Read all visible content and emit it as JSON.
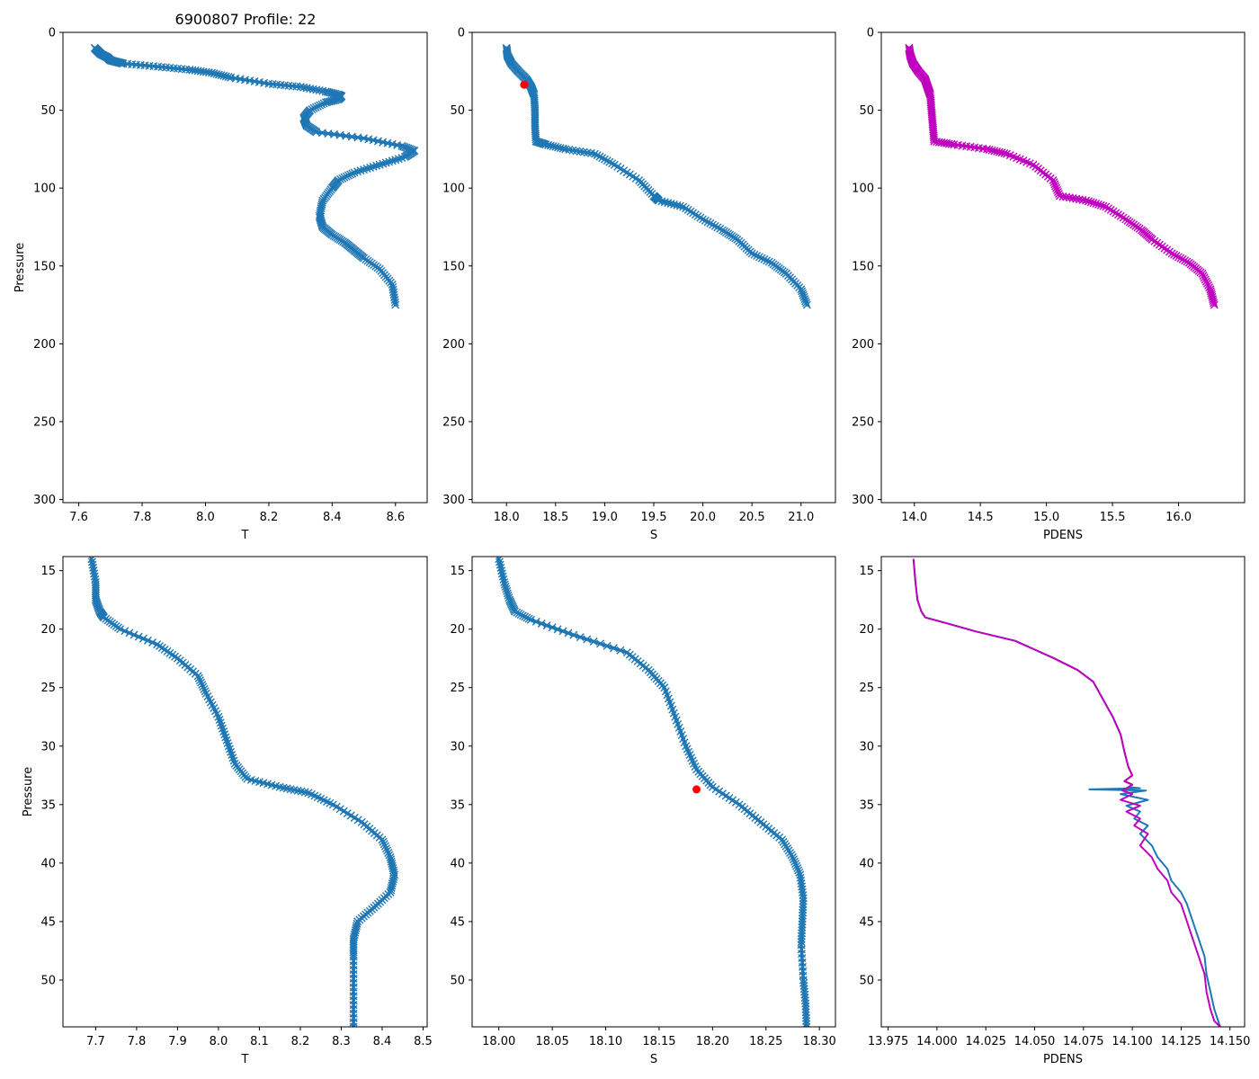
{
  "figure_title": "6900807 Profile: 22",
  "colors": {
    "series": "#1f77b4",
    "density": "#bf00bf",
    "marker": "#ff0000",
    "axis": "#000000"
  },
  "chart_data": [
    {
      "id": "t-full",
      "type": "scatter",
      "marker": "x",
      "title": "6900807 Profile: 22",
      "xlabel": "T",
      "ylabel": "Pressure",
      "xlim": [
        7.55,
        8.7
      ],
      "ylim": [
        302,
        0
      ],
      "y_inverted": true,
      "xticks": [
        7.6,
        7.8,
        8.0,
        8.2,
        8.4,
        8.6
      ],
      "xtick_labels": [
        "7.6",
        "7.8",
        "8.0",
        "8.2",
        "8.4",
        "8.6"
      ],
      "yticks": [
        0,
        50,
        100,
        150,
        200,
        250,
        300
      ],
      "ytick_labels": [
        "0",
        "50",
        "100",
        "150",
        "200",
        "250",
        "300"
      ],
      "series": [
        {
          "name": "T",
          "color": "#1f77b4",
          "x": [
            7.65,
            7.66,
            7.67,
            7.69,
            7.7,
            7.72,
            7.74,
            7.85,
            7.95,
            8.02,
            8.08,
            8.2,
            8.3,
            8.38,
            8.42,
            8.43,
            8.42,
            8.38,
            8.33,
            8.31,
            8.32,
            8.35,
            8.5,
            8.62,
            8.66,
            8.63,
            8.55,
            8.47,
            8.42,
            8.4,
            8.37,
            8.36,
            8.37,
            8.4,
            8.44,
            8.47,
            8.5,
            8.55,
            8.59,
            8.6
          ],
          "y": [
            10,
            12,
            14,
            16,
            18,
            19,
            20,
            22,
            24,
            26,
            29,
            33,
            35,
            38,
            40,
            41,
            43,
            45,
            50,
            55,
            60,
            64,
            68,
            73,
            76,
            80,
            85,
            90,
            95,
            100,
            108,
            118,
            125,
            130,
            135,
            140,
            145,
            152,
            162,
            175
          ]
        }
      ],
      "markers": []
    },
    {
      "id": "s-full",
      "type": "scatter",
      "marker": "x",
      "title": "",
      "xlabel": "S",
      "ylabel": "",
      "xlim": [
        17.65,
        21.35
      ],
      "ylim": [
        302,
        0
      ],
      "y_inverted": true,
      "xticks": [
        18.0,
        18.5,
        19.0,
        19.5,
        20.0,
        20.5,
        21.0
      ],
      "xtick_labels": [
        "18.0",
        "18.5",
        "19.0",
        "19.5",
        "20.0",
        "20.5",
        "21.0"
      ],
      "yticks": [
        0,
        50,
        100,
        150,
        200,
        250,
        300
      ],
      "ytick_labels": [
        "0",
        "50",
        "100",
        "150",
        "200",
        "250",
        "300"
      ],
      "series": [
        {
          "name": "S",
          "color": "#1f77b4",
          "x": [
            18.0,
            18.01,
            18.05,
            18.12,
            18.2,
            18.25,
            18.28,
            18.29,
            18.29,
            18.3,
            18.4,
            18.6,
            18.9,
            19.1,
            19.35,
            19.5,
            19.55,
            19.8,
            20.0,
            20.2,
            20.35,
            20.5,
            20.7,
            20.85,
            21.0,
            21.06
          ],
          "y": [
            10,
            15,
            20,
            25,
            30,
            35,
            40,
            50,
            60,
            70,
            72,
            75,
            78,
            85,
            95,
            105,
            108,
            112,
            120,
            127,
            133,
            142,
            148,
            155,
            165,
            175
          ]
        }
      ],
      "markers": [
        {
          "x": 18.18,
          "y": 33.6,
          "color": "#ff0000"
        }
      ]
    },
    {
      "id": "pdens-full",
      "type": "scatter",
      "marker": "x",
      "title": "",
      "xlabel": "PDENS",
      "ylabel": "",
      "xlim": [
        13.75,
        16.5
      ],
      "ylim": [
        302,
        0
      ],
      "y_inverted": true,
      "xticks": [
        14.0,
        14.5,
        15.0,
        15.5,
        16.0
      ],
      "xtick_labels": [
        "14.0",
        "14.5",
        "15.0",
        "15.5",
        "16.0"
      ],
      "yticks": [
        0,
        50,
        100,
        150,
        200,
        250,
        300
      ],
      "ytick_labels": [
        "0",
        "50",
        "100",
        "150",
        "200",
        "250",
        "300"
      ],
      "series": [
        {
          "name": "PDENS",
          "color": "#bf00bf",
          "x": [
            13.96,
            13.97,
            13.99,
            14.03,
            14.08,
            14.1,
            14.12,
            14.13,
            14.14,
            14.15,
            14.3,
            14.55,
            14.7,
            14.9,
            15.05,
            15.1,
            15.3,
            15.45,
            15.6,
            15.72,
            15.8,
            15.95,
            16.08,
            16.18,
            16.24,
            16.27
          ],
          "y": [
            10,
            15,
            20,
            25,
            30,
            35,
            40,
            50,
            60,
            70,
            72,
            75,
            78,
            85,
            95,
            105,
            108,
            112,
            120,
            127,
            133,
            142,
            148,
            155,
            165,
            175
          ]
        }
      ],
      "markers": []
    },
    {
      "id": "t-zoom",
      "type": "scatter",
      "marker": "x",
      "title": "",
      "xlabel": "T",
      "ylabel": "Pressure",
      "xlim": [
        7.62,
        8.51
      ],
      "ylim": [
        54,
        13.8
      ],
      "y_inverted": true,
      "xticks": [
        7.7,
        7.8,
        7.9,
        8.0,
        8.1,
        8.2,
        8.3,
        8.4,
        8.5
      ],
      "xtick_labels": [
        "7.7",
        "7.8",
        "7.9",
        "8.0",
        "8.1",
        "8.2",
        "8.3",
        "8.4",
        "8.5"
      ],
      "yticks": [
        15,
        20,
        25,
        30,
        35,
        40,
        45,
        50
      ],
      "ytick_labels": [
        "15",
        "20",
        "25",
        "30",
        "35",
        "40",
        "45",
        "50"
      ],
      "series": [
        {
          "name": "T",
          "color": "#1f77b4",
          "x": [
            7.69,
            7.7,
            7.7,
            7.71,
            7.72,
            7.76,
            7.85,
            7.9,
            7.95,
            7.97,
            8.0,
            8.02,
            8.04,
            8.07,
            8.15,
            8.22,
            8.28,
            8.35,
            8.4,
            8.42,
            8.43,
            8.42,
            8.38,
            8.34,
            8.33,
            8.33,
            8.33,
            8.33
          ],
          "y": [
            14,
            16,
            17.5,
            18.5,
            19,
            20,
            21.3,
            22.5,
            24,
            25.5,
            27.5,
            29.5,
            31.5,
            32.8,
            33.5,
            34,
            35,
            36.5,
            38,
            39.5,
            41,
            42.5,
            43.8,
            45,
            46.5,
            48,
            51,
            54
          ]
        }
      ],
      "markers": []
    },
    {
      "id": "s-zoom",
      "type": "scatter",
      "marker": "x",
      "title": "",
      "xlabel": "S",
      "ylabel": "",
      "xlim": [
        17.975,
        18.315
      ],
      "ylim": [
        54,
        13.8
      ],
      "y_inverted": true,
      "xticks": [
        18.0,
        18.05,
        18.1,
        18.15,
        18.2,
        18.25,
        18.3
      ],
      "xtick_labels": [
        "18.00",
        "18.05",
        "18.10",
        "18.15",
        "18.20",
        "18.25",
        "18.30"
      ],
      "yticks": [
        15,
        20,
        25,
        30,
        35,
        40,
        45,
        50
      ],
      "ytick_labels": [
        "15",
        "20",
        "25",
        "30",
        "35",
        "40",
        "45",
        "50"
      ],
      "series": [
        {
          "name": "S",
          "color": "#1f77b4",
          "x": [
            18.0,
            18.005,
            18.01,
            18.015,
            18.03,
            18.07,
            18.12,
            18.14,
            18.155,
            18.165,
            18.175,
            18.185,
            18.2,
            18.225,
            18.245,
            18.265,
            18.275,
            18.282,
            18.285,
            18.284,
            18.283,
            18.285,
            18.287,
            18.288
          ],
          "y": [
            14,
            16,
            17.5,
            18.5,
            19.2,
            20.5,
            22,
            23.5,
            25,
            27.5,
            30,
            32,
            33.5,
            35,
            36.5,
            38,
            39.5,
            41,
            43,
            45,
            47,
            50,
            52,
            54
          ]
        }
      ],
      "markers": [
        {
          "x": 18.185,
          "y": 33.7,
          "color": "#ff0000"
        }
      ]
    },
    {
      "id": "pdens-zoom",
      "type": "line",
      "title": "",
      "xlabel": "PDENS",
      "ylabel": "",
      "xlim": [
        13.9715,
        14.1575
      ],
      "ylim": [
        54,
        13.8
      ],
      "y_inverted": true,
      "xticks": [
        13.975,
        14.0,
        14.025,
        14.05,
        14.075,
        14.1,
        14.125,
        14.15
      ],
      "xtick_labels": [
        "13.975",
        "14.000",
        "14.025",
        "14.050",
        "14.075",
        "14.100",
        "14.125",
        "14.150"
      ],
      "yticks": [
        15,
        20,
        25,
        30,
        35,
        40,
        45,
        50
      ],
      "ytick_labels": [
        "15",
        "20",
        "25",
        "30",
        "35",
        "40",
        "45",
        "50"
      ],
      "series": [
        {
          "name": "PDENS",
          "color": "#1f77b4",
          "x": [
            13.988,
            13.989,
            13.99,
            13.992,
            13.994,
            14.005,
            14.02,
            14.04,
            14.06,
            14.072,
            14.08,
            14.085,
            14.09,
            14.094,
            14.096,
            14.098,
            14.1,
            14.096,
            14.1,
            14.098,
            14.104,
            14.078,
            14.107,
            14.094,
            14.108,
            14.097,
            14.104,
            14.101,
            14.108,
            14.104,
            14.11,
            14.113,
            14.118,
            14.12,
            14.125,
            14.128,
            14.131,
            14.134,
            14.137,
            14.138,
            14.14,
            14.142,
            14.145
          ],
          "y": [
            14,
            16,
            17.5,
            18.5,
            19,
            19.5,
            20.2,
            21,
            22.5,
            23.5,
            24.5,
            26,
            27.5,
            29,
            30.5,
            31.8,
            32.5,
            33,
            33.3,
            33.5,
            33.6,
            33.7,
            33.8,
            34.1,
            34.6,
            35.1,
            35.6,
            36.2,
            36.8,
            37.5,
            38.5,
            39.5,
            40.5,
            41.5,
            42.5,
            43.5,
            45,
            46.5,
            48,
            49.5,
            51,
            52.5,
            54
          ]
        },
        {
          "name": "PDENS (magenta)",
          "color": "#bf00bf",
          "x": [
            13.988,
            13.989,
            13.99,
            13.992,
            13.994,
            14.005,
            14.02,
            14.04,
            14.06,
            14.072,
            14.08,
            14.085,
            14.09,
            14.094,
            14.096,
            14.098,
            14.1,
            14.096,
            14.1,
            14.098,
            14.095,
            14.1,
            14.094,
            14.104,
            14.097,
            14.104,
            14.101,
            14.108,
            14.104,
            14.11,
            14.113,
            14.118,
            14.12,
            14.125,
            14.128,
            14.131,
            14.134,
            14.137,
            14.138,
            14.14,
            14.142,
            14.145
          ],
          "y": [
            14,
            16,
            17.5,
            18.5,
            19,
            19.5,
            20.2,
            21,
            22.5,
            23.5,
            24.5,
            26,
            27.5,
            29,
            30.5,
            31.8,
            32.5,
            33,
            33.3,
            33.5,
            33.8,
            34.1,
            34.6,
            35.1,
            35.6,
            36.2,
            36.8,
            37.5,
            38.5,
            39.5,
            40.5,
            41.5,
            42.5,
            43.5,
            45,
            46.5,
            48,
            49.5,
            51,
            52.5,
            53.5,
            54
          ]
        }
      ],
      "markers": []
    }
  ]
}
